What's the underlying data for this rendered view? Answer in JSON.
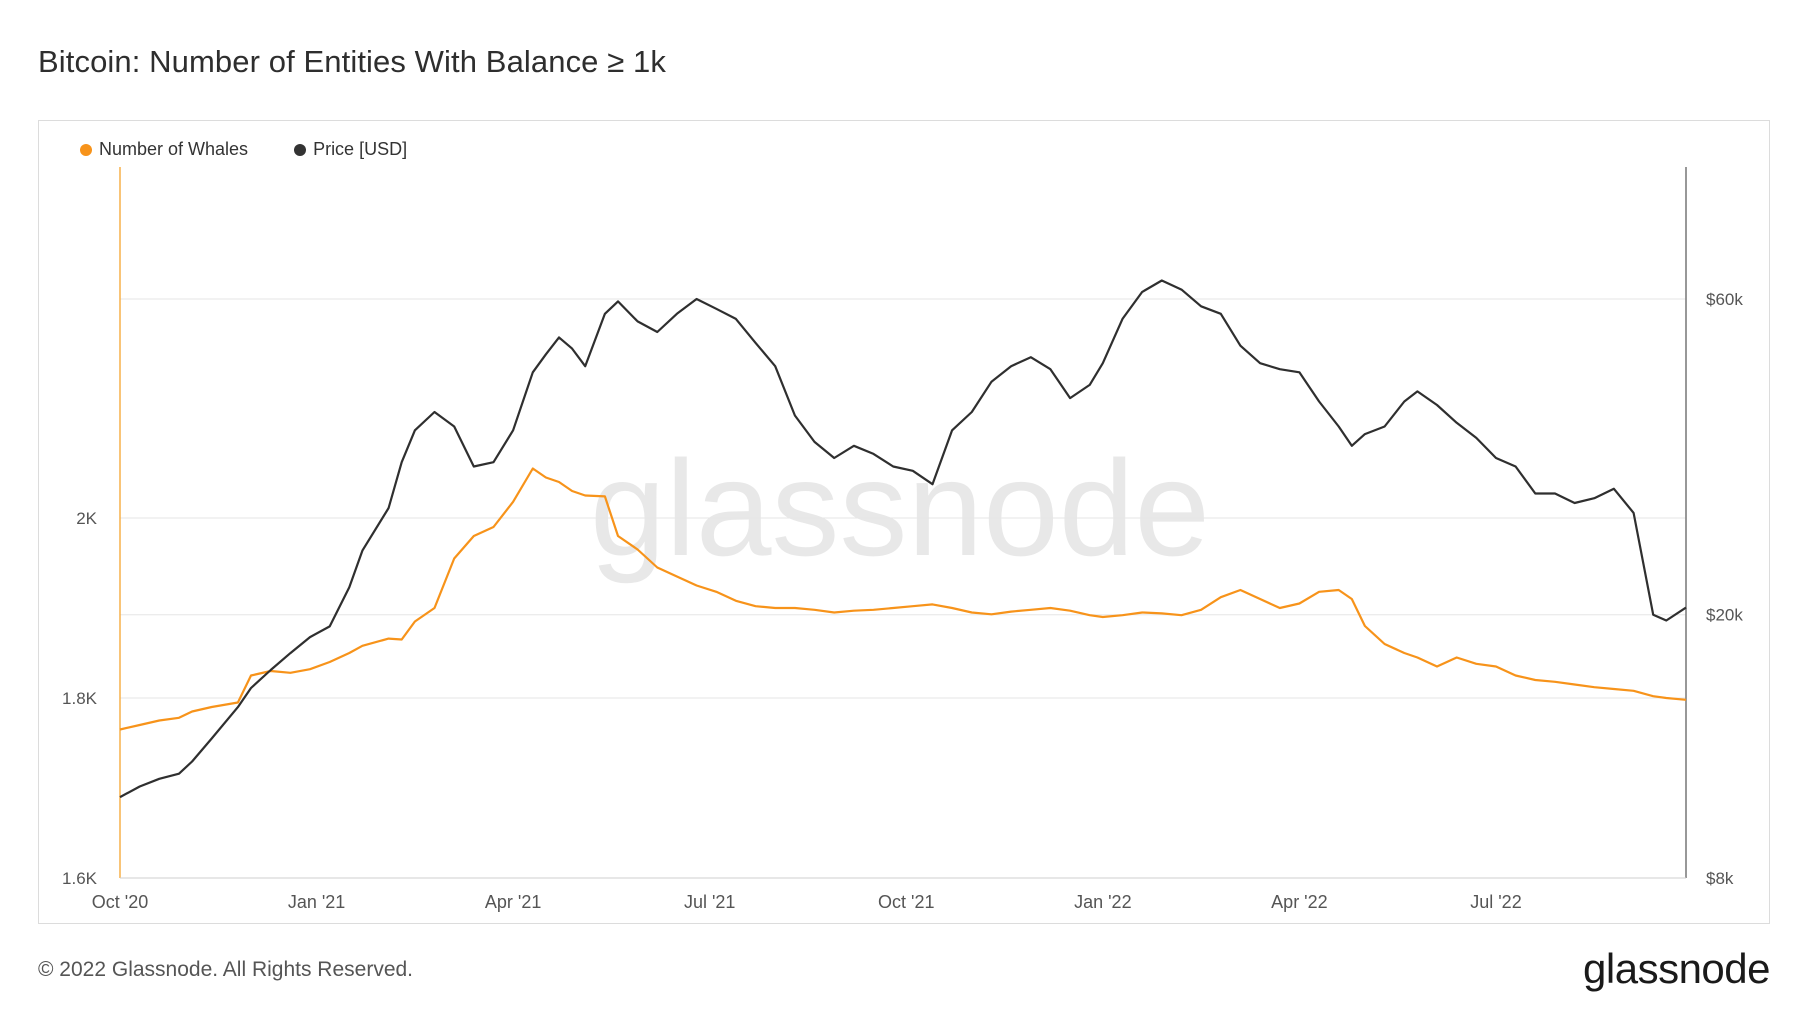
{
  "title": "Bitcoin: Number of Entities With Balance ≥ 1k",
  "watermark": "glassnode",
  "footer": {
    "copyright": "© 2022 Glassnode. All Rights Reserved.",
    "logo": "glassnode"
  },
  "legend": {
    "whales_label": "Number of Whales",
    "price_label": "Price [USD]"
  },
  "colors": {
    "whales": "#f7931a",
    "price": "#2f2f2f",
    "grid": "#e6e6e6",
    "axis_text": "#555555"
  },
  "chart_data": {
    "type": "line",
    "title": "Bitcoin: Number of Entities With Balance ≥ 1k",
    "x_ticks": [
      "Oct '20",
      "Jan '21",
      "Apr '21",
      "Jul '21",
      "Oct '21",
      "Jan '22",
      "Apr '22",
      "Jul '22"
    ],
    "x_tick_months": [
      0,
      3,
      6,
      9,
      12,
      15,
      18,
      21
    ],
    "x_range_months": [
      0,
      23.9
    ],
    "y_left": {
      "scale": "linear",
      "range": [
        1600,
        2390
      ],
      "ticks": [
        1600,
        1800,
        2000
      ],
      "tick_labels": [
        "1.6K",
        "1.8K",
        "2K"
      ]
    },
    "y_right": {
      "scale": "log",
      "range": [
        8000,
        95000
      ],
      "ticks": [
        8000,
        20000,
        60000
      ],
      "tick_labels": [
        "$8k",
        "$20k",
        "$60k"
      ]
    },
    "series": [
      {
        "name": "Number of Whales",
        "axis": "left",
        "color": "#f7931a",
        "points": [
          [
            0.0,
            1765
          ],
          [
            0.3,
            1770
          ],
          [
            0.6,
            1775
          ],
          [
            0.9,
            1778
          ],
          [
            1.1,
            1785
          ],
          [
            1.4,
            1790
          ],
          [
            1.8,
            1795
          ],
          [
            2.0,
            1825
          ],
          [
            2.3,
            1830
          ],
          [
            2.6,
            1828
          ],
          [
            2.9,
            1832
          ],
          [
            3.2,
            1840
          ],
          [
            3.5,
            1850
          ],
          [
            3.7,
            1858
          ],
          [
            4.1,
            1866
          ],
          [
            4.3,
            1865
          ],
          [
            4.5,
            1885
          ],
          [
            4.8,
            1900
          ],
          [
            5.1,
            1955
          ],
          [
            5.4,
            1980
          ],
          [
            5.7,
            1990
          ],
          [
            6.0,
            2018
          ],
          [
            6.3,
            2055
          ],
          [
            6.5,
            2045
          ],
          [
            6.7,
            2040
          ],
          [
            6.9,
            2030
          ],
          [
            7.1,
            2025
          ],
          [
            7.4,
            2024
          ],
          [
            7.6,
            1980
          ],
          [
            7.9,
            1965
          ],
          [
            8.2,
            1945
          ],
          [
            8.5,
            1935
          ],
          [
            8.8,
            1925
          ],
          [
            9.1,
            1918
          ],
          [
            9.4,
            1908
          ],
          [
            9.7,
            1902
          ],
          [
            10.0,
            1900
          ],
          [
            10.3,
            1900
          ],
          [
            10.6,
            1898
          ],
          [
            10.9,
            1895
          ],
          [
            11.2,
            1897
          ],
          [
            11.5,
            1898
          ],
          [
            11.8,
            1900
          ],
          [
            12.1,
            1902
          ],
          [
            12.4,
            1904
          ],
          [
            12.7,
            1900
          ],
          [
            13.0,
            1895
          ],
          [
            13.3,
            1893
          ],
          [
            13.6,
            1896
          ],
          [
            13.9,
            1898
          ],
          [
            14.2,
            1900
          ],
          [
            14.5,
            1897
          ],
          [
            14.8,
            1892
          ],
          [
            15.0,
            1890
          ],
          [
            15.3,
            1892
          ],
          [
            15.6,
            1895
          ],
          [
            15.9,
            1894
          ],
          [
            16.2,
            1892
          ],
          [
            16.5,
            1898
          ],
          [
            16.8,
            1912
          ],
          [
            17.1,
            1920
          ],
          [
            17.4,
            1910
          ],
          [
            17.7,
            1900
          ],
          [
            18.0,
            1905
          ],
          [
            18.3,
            1918
          ],
          [
            18.6,
            1920
          ],
          [
            18.8,
            1910
          ],
          [
            19.0,
            1880
          ],
          [
            19.3,
            1860
          ],
          [
            19.6,
            1850
          ],
          [
            19.8,
            1845
          ],
          [
            20.1,
            1835
          ],
          [
            20.4,
            1845
          ],
          [
            20.7,
            1838
          ],
          [
            21.0,
            1835
          ],
          [
            21.3,
            1825
          ],
          [
            21.6,
            1820
          ],
          [
            21.9,
            1818
          ],
          [
            22.2,
            1815
          ],
          [
            22.5,
            1812
          ],
          [
            22.8,
            1810
          ],
          [
            23.1,
            1808
          ],
          [
            23.4,
            1802
          ],
          [
            23.6,
            1800
          ],
          [
            23.9,
            1798
          ]
        ]
      },
      {
        "name": "Price [USD]",
        "axis": "right",
        "color": "#2f2f2f",
        "points": [
          [
            0.0,
            10600
          ],
          [
            0.3,
            11000
          ],
          [
            0.6,
            11300
          ],
          [
            0.9,
            11500
          ],
          [
            1.1,
            12000
          ],
          [
            1.4,
            13000
          ],
          [
            1.8,
            14500
          ],
          [
            2.0,
            15500
          ],
          [
            2.3,
            16500
          ],
          [
            2.6,
            17500
          ],
          [
            2.9,
            18500
          ],
          [
            3.2,
            19200
          ],
          [
            3.5,
            22000
          ],
          [
            3.7,
            25000
          ],
          [
            4.1,
            29000
          ],
          [
            4.3,
            34000
          ],
          [
            4.5,
            38000
          ],
          [
            4.8,
            40500
          ],
          [
            5.1,
            38500
          ],
          [
            5.4,
            33500
          ],
          [
            5.7,
            34000
          ],
          [
            6.0,
            38000
          ],
          [
            6.3,
            46500
          ],
          [
            6.5,
            49500
          ],
          [
            6.7,
            52500
          ],
          [
            6.9,
            50500
          ],
          [
            7.1,
            47500
          ],
          [
            7.4,
            57000
          ],
          [
            7.6,
            59500
          ],
          [
            7.9,
            55500
          ],
          [
            8.2,
            53500
          ],
          [
            8.5,
            57000
          ],
          [
            8.8,
            60000
          ],
          [
            9.1,
            58000
          ],
          [
            9.4,
            56000
          ],
          [
            9.7,
            51500
          ],
          [
            10.0,
            47500
          ],
          [
            10.3,
            40000
          ],
          [
            10.6,
            36500
          ],
          [
            10.9,
            34500
          ],
          [
            11.2,
            36000
          ],
          [
            11.5,
            35000
          ],
          [
            11.8,
            33500
          ],
          [
            12.1,
            33000
          ],
          [
            12.4,
            31500
          ],
          [
            12.7,
            38000
          ],
          [
            13.0,
            40500
          ],
          [
            13.3,
            45000
          ],
          [
            13.6,
            47500
          ],
          [
            13.9,
            49000
          ],
          [
            14.2,
            47000
          ],
          [
            14.5,
            42500
          ],
          [
            14.8,
            44500
          ],
          [
            15.0,
            48000
          ],
          [
            15.3,
            56000
          ],
          [
            15.6,
            61500
          ],
          [
            15.9,
            64000
          ],
          [
            16.2,
            62000
          ],
          [
            16.5,
            58500
          ],
          [
            16.8,
            57000
          ],
          [
            17.1,
            51000
          ],
          [
            17.4,
            48000
          ],
          [
            17.7,
            47000
          ],
          [
            18.0,
            46500
          ],
          [
            18.3,
            42000
          ],
          [
            18.6,
            38500
          ],
          [
            18.8,
            36000
          ],
          [
            19.0,
            37500
          ],
          [
            19.3,
            38500
          ],
          [
            19.6,
            42000
          ],
          [
            19.8,
            43500
          ],
          [
            20.1,
            41500
          ],
          [
            20.4,
            39000
          ],
          [
            20.7,
            37000
          ],
          [
            21.0,
            34500
          ],
          [
            21.3,
            33500
          ],
          [
            21.6,
            30500
          ],
          [
            21.9,
            30500
          ],
          [
            22.2,
            29500
          ],
          [
            22.5,
            30000
          ],
          [
            22.8,
            31000
          ],
          [
            23.1,
            28500
          ],
          [
            23.4,
            20000
          ],
          [
            23.6,
            19600
          ],
          [
            23.9,
            20500
          ]
        ]
      }
    ]
  }
}
